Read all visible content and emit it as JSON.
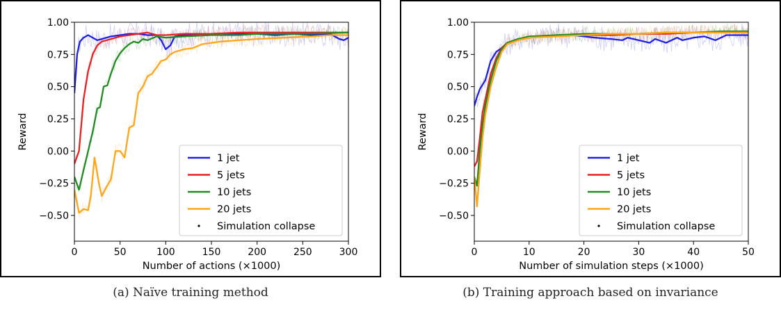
{
  "colors": {
    "1 jet": "#1f1fe6",
    "5 jets": "#e82020",
    "10 jets": "#228b22",
    "20 jets": "#ffa51a"
  },
  "chart_data": [
    {
      "type": "line",
      "caption": "(a) Naïve training method",
      "xlabel": "Number of actions (×1000)",
      "ylabel": "Reward",
      "xlim": [
        0,
        300
      ],
      "ylim": [
        -0.7,
        1.0
      ],
      "xticks": [
        0,
        50,
        100,
        150,
        200,
        250,
        300
      ],
      "yticks": [
        -0.5,
        -0.25,
        0.0,
        0.25,
        0.5,
        0.75,
        1.0
      ],
      "xtick_labels": [
        "0",
        "50",
        "100",
        "150",
        "200",
        "250",
        "300"
      ],
      "ytick_labels": [
        "−0.50",
        "−0.25",
        "0.00",
        "0.25",
        "0.50",
        "0.75",
        "1.00"
      ],
      "legend": [
        "1 jet",
        "5 jets",
        "10 jets",
        "20 jets",
        "Simulation collapse"
      ],
      "series": [
        {
          "name": "1 jet",
          "x": [
            0,
            3,
            6,
            10,
            15,
            20,
            25,
            30,
            40,
            50,
            60,
            70,
            80,
            90,
            95,
            100,
            105,
            110,
            120,
            140,
            160,
            180,
            200,
            220,
            240,
            260,
            280,
            290,
            295,
            300
          ],
          "y": [
            0.45,
            0.75,
            0.85,
            0.88,
            0.9,
            0.88,
            0.86,
            0.87,
            0.89,
            0.9,
            0.91,
            0.91,
            0.9,
            0.9,
            0.86,
            0.79,
            0.82,
            0.89,
            0.9,
            0.91,
            0.9,
            0.91,
            0.91,
            0.9,
            0.91,
            0.9,
            0.91,
            0.87,
            0.86,
            0.88
          ]
        },
        {
          "name": "5 jets",
          "x": [
            0,
            5,
            10,
            15,
            20,
            25,
            30,
            40,
            50,
            60,
            70,
            80,
            90,
            100,
            120,
            150,
            180,
            200,
            250,
            300
          ],
          "y": [
            -0.1,
            0.0,
            0.4,
            0.62,
            0.75,
            0.82,
            0.85,
            0.87,
            0.89,
            0.9,
            0.91,
            0.92,
            0.9,
            0.9,
            0.91,
            0.91,
            0.92,
            0.92,
            0.92,
            0.92
          ]
        },
        {
          "name": "10 jets",
          "x": [
            0,
            5,
            10,
            15,
            20,
            25,
            28,
            32,
            36,
            40,
            45,
            50,
            55,
            60,
            65,
            70,
            75,
            80,
            90,
            100,
            120,
            150,
            180,
            200,
            250,
            300
          ],
          "y": [
            -0.2,
            -0.3,
            -0.15,
            0.0,
            0.15,
            0.33,
            0.34,
            0.5,
            0.51,
            0.6,
            0.7,
            0.76,
            0.8,
            0.83,
            0.85,
            0.84,
            0.87,
            0.86,
            0.89,
            0.88,
            0.89,
            0.9,
            0.9,
            0.91,
            0.91,
            0.92
          ]
        },
        {
          "name": "20 jets",
          "x": [
            0,
            5,
            10,
            15,
            18,
            22,
            27,
            30,
            35,
            40,
            45,
            50,
            55,
            60,
            65,
            70,
            75,
            80,
            85,
            90,
            95,
            100,
            105,
            110,
            120,
            130,
            140,
            160,
            180,
            200,
            230,
            260,
            280,
            300
          ],
          "y": [
            -0.3,
            -0.48,
            -0.45,
            -0.46,
            -0.35,
            -0.05,
            -0.26,
            -0.35,
            -0.28,
            -0.22,
            0.0,
            0.0,
            -0.05,
            0.18,
            0.2,
            0.45,
            0.5,
            0.58,
            0.6,
            0.65,
            0.7,
            0.71,
            0.75,
            0.77,
            0.79,
            0.8,
            0.83,
            0.85,
            0.86,
            0.87,
            0.88,
            0.89,
            0.9,
            0.9
          ]
        }
      ]
    },
    {
      "type": "line",
      "caption": "(b) Training approach based on invariance",
      "xlabel": "Number of simulation steps (×1000)",
      "ylabel": "Reward",
      "xlim": [
        0,
        50
      ],
      "ylim": [
        -0.7,
        1.0
      ],
      "xticks": [
        0,
        10,
        20,
        30,
        40,
        50
      ],
      "yticks": [
        -0.5,
        -0.25,
        0.0,
        0.25,
        0.5,
        0.75,
        1.0
      ],
      "xtick_labels": [
        "0",
        "10",
        "20",
        "30",
        "40",
        "50"
      ],
      "ytick_labels": [
        "−0.50",
        "−0.25",
        "0.00",
        "0.25",
        "0.50",
        "0.75",
        "1.00"
      ],
      "legend": [
        "1 jet",
        "5 jets",
        "10 jets",
        "20 jets",
        "Simulation collapse"
      ],
      "series": [
        {
          "name": "1 jet",
          "x": [
            0,
            0.5,
            1,
            2,
            3,
            4,
            5,
            6,
            8,
            10,
            12,
            15,
            18,
            20,
            22,
            25,
            27,
            28,
            30,
            32,
            33,
            35,
            37,
            38,
            40,
            42,
            44,
            46,
            48,
            50
          ],
          "y": [
            0.35,
            0.42,
            0.48,
            0.55,
            0.7,
            0.77,
            0.8,
            0.84,
            0.87,
            0.88,
            0.89,
            0.9,
            0.9,
            0.89,
            0.88,
            0.87,
            0.86,
            0.88,
            0.86,
            0.84,
            0.87,
            0.84,
            0.88,
            0.86,
            0.88,
            0.89,
            0.86,
            0.9,
            0.9,
            0.9
          ]
        },
        {
          "name": "5 jets",
          "x": [
            0,
            0.5,
            1,
            1.5,
            2,
            3,
            4,
            5,
            6,
            8,
            10,
            15,
            20,
            25,
            30,
            35,
            40,
            45,
            50
          ],
          "y": [
            -0.12,
            -0.08,
            0.1,
            0.3,
            0.4,
            0.6,
            0.72,
            0.8,
            0.84,
            0.87,
            0.88,
            0.9,
            0.9,
            0.9,
            0.91,
            0.91,
            0.92,
            0.92,
            0.93
          ]
        },
        {
          "name": "10 jets",
          "x": [
            0,
            0.5,
            1,
            1.5,
            2,
            3,
            4,
            5,
            6,
            8,
            10,
            15,
            20,
            25,
            30,
            35,
            40,
            45,
            50
          ],
          "y": [
            -0.2,
            -0.27,
            0.0,
            0.2,
            0.35,
            0.55,
            0.7,
            0.79,
            0.84,
            0.87,
            0.89,
            0.9,
            0.91,
            0.91,
            0.91,
            0.92,
            0.92,
            0.93,
            0.93
          ]
        },
        {
          "name": "20 jets",
          "x": [
            0,
            0.5,
            1,
            1.5,
            2,
            3,
            4,
            5,
            6,
            8,
            10,
            15,
            20,
            25,
            30,
            35,
            40,
            45,
            50
          ],
          "y": [
            -0.2,
            -0.43,
            -0.15,
            0.1,
            0.28,
            0.5,
            0.65,
            0.77,
            0.83,
            0.86,
            0.88,
            0.89,
            0.9,
            0.91,
            0.91,
            0.92,
            0.92,
            0.92,
            0.92
          ]
        }
      ]
    }
  ]
}
